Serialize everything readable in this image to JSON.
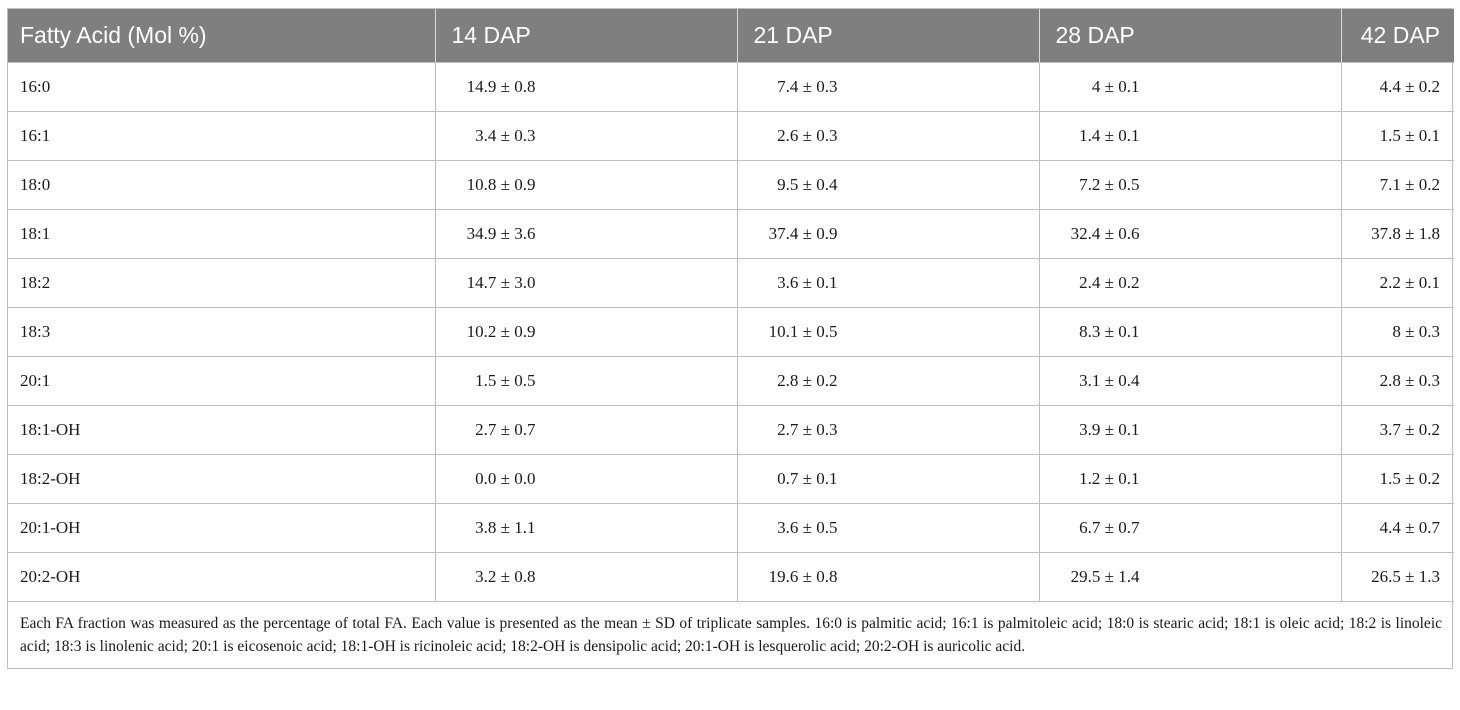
{
  "table": {
    "headers": [
      "Fatty Acid (Mol %)",
      "14 DAP",
      "21 DAP",
      "28 DAP",
      "42 DAP"
    ],
    "rows": [
      [
        "16:0",
        "14.9 ± 0.8",
        "7.4 ± 0.3",
        "4 ± 0.1",
        "4.4 ± 0.2"
      ],
      [
        "16:1",
        "3.4 ± 0.3",
        "2.6 ± 0.3",
        "1.4 ± 0.1",
        "1.5 ± 0.1"
      ],
      [
        "18:0",
        "10.8 ± 0.9",
        "9.5 ± 0.4",
        "7.2 ± 0.5",
        "7.1 ± 0.2"
      ],
      [
        "18:1",
        "34.9 ± 3.6",
        "37.4 ± 0.9",
        "32.4 ± 0.6",
        "37.8 ± 1.8"
      ],
      [
        "18:2",
        "14.7 ± 3.0",
        "3.6 ± 0.1",
        "2.4 ± 0.2",
        "2.2 ± 0.1"
      ],
      [
        "18:3",
        "10.2 ± 0.9",
        "10.1 ± 0.5",
        "8.3 ± 0.1",
        "8 ± 0.3"
      ],
      [
        "20:1",
        "1.5 ± 0.5",
        "2.8 ± 0.2",
        "3.1 ± 0.4",
        "2.8 ± 0.3"
      ],
      [
        "18:1-OH",
        "2.7 ± 0.7",
        "2.7 ± 0.3",
        "3.9 ± 0.1",
        "3.7 ± 0.2"
      ],
      [
        "18:2-OH",
        "0.0 ± 0.0",
        "0.7 ± 0.1",
        "1.2 ± 0.1",
        "1.5 ± 0.2"
      ],
      [
        "20:1-OH",
        "3.8 ± 1.1",
        "3.6 ± 0.5",
        "6.7 ± 0.7",
        "4.4 ± 0.7"
      ],
      [
        "20:2-OH",
        "3.2 ± 0.8",
        "19.6 ± 0.8",
        "29.5 ± 1.4",
        "26.5 ± 1.3"
      ]
    ],
    "footnote": "Each FA fraction was measured as the percentage of total FA. Each value is presented as the mean ± SD of triplicate samples. 16:0 is palmitic acid; 16:1 is palmitoleic acid; 18:0 is stearic acid; 18:1 is oleic acid; 18:2 is linoleic acid; 18:3 is linolenic acid; 20:1 is eicosenoic acid; 18:1-OH is ricinoleic acid; 18:2-OH is densipolic acid; 20:1-OH is lesquerolic acid; 20:2-OH is auricolic acid."
  }
}
